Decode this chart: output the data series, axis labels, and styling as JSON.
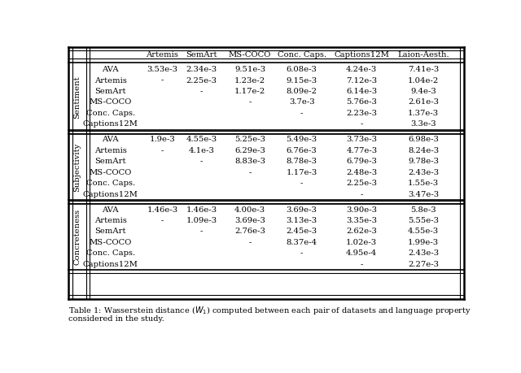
{
  "col_headers": [
    "",
    "Artemis",
    "SemArt",
    "MS-COCO",
    "Conc. Caps.",
    "Captions12M",
    "Laion-Aesth."
  ],
  "row_groups": [
    {
      "group_label": "Sentiment",
      "rows": [
        [
          "AVA",
          "3.53e-3",
          "2.34e-3",
          "9.51e-3",
          "6.08e-3",
          "4.24e-3",
          "7.41e-3"
        ],
        [
          "Artemis",
          "-",
          "2.25e-3",
          "1.23e-2",
          "9.15e-3",
          "7.12e-3",
          "1.04e-2"
        ],
        [
          "SemArt",
          "",
          "-",
          "1.17e-2",
          "8.09e-2",
          "6.14e-3",
          "9.4e-3"
        ],
        [
          "MS-COCO",
          "",
          "",
          "-",
          "3.7e-3",
          "5.76e-3",
          "2.61e-3"
        ],
        [
          "Conc. Caps.",
          "",
          "",
          "",
          "-",
          "2.23e-3",
          "1.37e-3"
        ],
        [
          "Captions12M",
          "",
          "",
          "",
          "",
          "-",
          "3.3e-3"
        ]
      ]
    },
    {
      "group_label": "Subjectivity",
      "rows": [
        [
          "AVA",
          "1.9e-3",
          "4.55e-3",
          "5.25e-3",
          "5.49e-3",
          "3.73e-3",
          "6.98e-3"
        ],
        [
          "Artemis",
          "-",
          "4.1e-3",
          "6.29e-3",
          "6.76e-3",
          "4.77e-3",
          "8.24e-3"
        ],
        [
          "SemArt",
          "",
          "-",
          "8.83e-3",
          "8.78e-3",
          "6.79e-3",
          "9.78e-3"
        ],
        [
          "MS-COCO",
          "",
          "",
          "-",
          "1.17e-3",
          "2.48e-3",
          "2.43e-3"
        ],
        [
          "Conc. Caps.",
          "",
          "",
          "",
          "-",
          "2.25e-3",
          "1.55e-3"
        ],
        [
          "Captions12M",
          "",
          "",
          "",
          "",
          "-",
          "3.47e-3"
        ]
      ]
    },
    {
      "group_label": "Concreteness",
      "rows": [
        [
          "AVA",
          "1.46e-3",
          "1.46e-3",
          "4.00e-3",
          "3.69e-3",
          "3.90e-3",
          "5.8e-3"
        ],
        [
          "Artemis",
          "-",
          "1.09e-3",
          "3.69e-3",
          "3.13e-3",
          "3.35e-3",
          "5.55e-3"
        ],
        [
          "SemArt",
          "",
          "-",
          "2.76e-3",
          "2.45e-3",
          "2.62e-3",
          "4.55e-3"
        ],
        [
          "MS-COCO",
          "",
          "",
          "-",
          "8.37e-4",
          "1.02e-3",
          "1.99e-3"
        ],
        [
          "Conc. Caps.",
          "",
          "",
          "",
          "-",
          "4.95e-4",
          "2.43e-3"
        ],
        [
          "Captions12M",
          "",
          "",
          "",
          "",
          "-",
          "2.27e-3"
        ]
      ]
    }
  ],
  "caption_line1": "Table 1: Wasserstein distance ($W_1$) computed between each pair of datasets and language property",
  "caption_line2": "considered in the study.",
  "figsize": [
    6.4,
    4.59
  ],
  "dpi": 100,
  "bg_color": "#ffffff",
  "text_color": "#000000",
  "font_size": 7.2,
  "header_font_size": 7.2,
  "caption_font_size": 7.0,
  "group_label_font_size": 7.2
}
